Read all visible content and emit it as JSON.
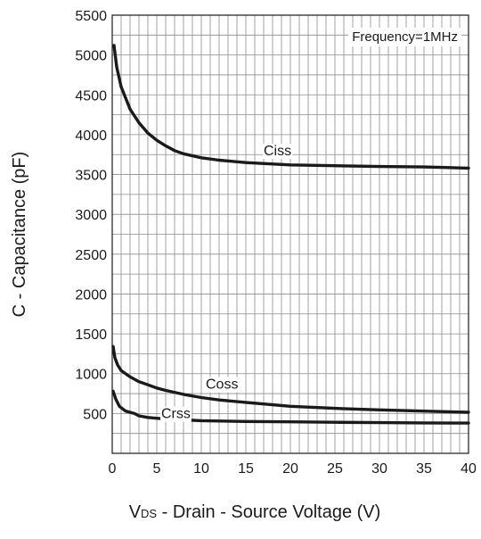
{
  "chart_data": {
    "type": "line",
    "title": "",
    "annotation": "Frequency=1MHz",
    "xlabel": {
      "prefix": "V",
      "subscript": "DS",
      "rest": " - Drain - Source Voltage (V)"
    },
    "ylabel": "C - Capacitance (pF)",
    "xlim": [
      0,
      40
    ],
    "ylim": [
      0,
      5500
    ],
    "x_ticks": [
      "0",
      "5",
      "10",
      "15",
      "20",
      "25",
      "30",
      "35",
      "40"
    ],
    "y_ticks": [
      "500",
      "1000",
      "1500",
      "2000",
      "2500",
      "3000",
      "3500",
      "4000",
      "4500",
      "5000",
      "5500"
    ],
    "grid": true,
    "line_color": "#1a1a1a",
    "grid_color": "#8c8c8c",
    "series": [
      {
        "name": "Ciss",
        "points": [
          [
            0.2,
            5120
          ],
          [
            0.5,
            4850
          ],
          [
            1,
            4600
          ],
          [
            2,
            4320
          ],
          [
            3,
            4150
          ],
          [
            4,
            4020
          ],
          [
            5,
            3930
          ],
          [
            6,
            3860
          ],
          [
            7,
            3800
          ],
          [
            8,
            3760
          ],
          [
            10,
            3710
          ],
          [
            12,
            3680
          ],
          [
            15,
            3650
          ],
          [
            20,
            3620
          ],
          [
            25,
            3610
          ],
          [
            30,
            3600
          ],
          [
            35,
            3595
          ],
          [
            40,
            3580
          ]
        ],
        "label_at": [
          17,
          3740
        ]
      },
      {
        "name": "Coss",
        "points": [
          [
            0.1,
            1340
          ],
          [
            0.3,
            1200
          ],
          [
            0.6,
            1110
          ],
          [
            1,
            1040
          ],
          [
            2,
            960
          ],
          [
            3,
            900
          ],
          [
            4,
            860
          ],
          [
            5,
            820
          ],
          [
            6,
            790
          ],
          [
            8,
            740
          ],
          [
            10,
            700
          ],
          [
            12,
            670
          ],
          [
            15,
            640
          ],
          [
            20,
            590
          ],
          [
            25,
            565
          ],
          [
            30,
            545
          ],
          [
            35,
            530
          ],
          [
            40,
            515
          ]
        ],
        "label_at": [
          10.5,
          810
        ]
      },
      {
        "name": "Crss",
        "points": [
          [
            0.1,
            780
          ],
          [
            0.4,
            680
          ],
          [
            0.8,
            590
          ],
          [
            1.5,
            530
          ],
          [
            2.5,
            500
          ],
          [
            3,
            470
          ],
          [
            4,
            450
          ],
          [
            6,
            430
          ],
          [
            8,
            420
          ],
          [
            10,
            410
          ],
          [
            15,
            400
          ],
          [
            20,
            395
          ],
          [
            25,
            390
          ],
          [
            30,
            385
          ],
          [
            35,
            382
          ],
          [
            40,
            380
          ]
        ],
        "label_at": [
          5.5,
          440
        ]
      }
    ]
  }
}
